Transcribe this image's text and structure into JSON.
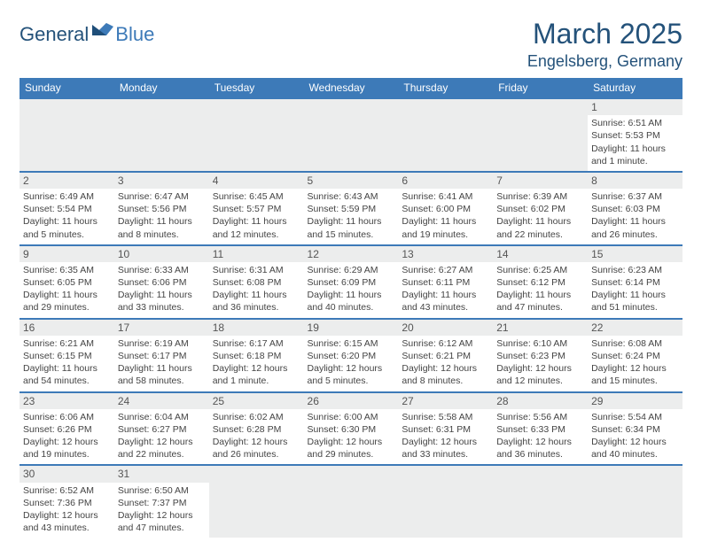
{
  "logo": {
    "word1": "General",
    "word2": "Blue"
  },
  "header": {
    "title": "March 2025",
    "subtitle": "Engelsberg, Germany"
  },
  "colors": {
    "header_bg": "#3d7ab8",
    "header_text": "#ffffff",
    "daybar_bg": "#eceded",
    "border": "#3d7ab8",
    "title": "#24527a"
  },
  "daynames": [
    "Sunday",
    "Monday",
    "Tuesday",
    "Wednesday",
    "Thursday",
    "Friday",
    "Saturday"
  ],
  "weeks": [
    [
      null,
      null,
      null,
      null,
      null,
      null,
      {
        "n": "1",
        "sr": "Sunrise: 6:51 AM",
        "ss": "Sunset: 5:53 PM",
        "d1": "Daylight: 11 hours",
        "d2": "and 1 minute."
      }
    ],
    [
      {
        "n": "2",
        "sr": "Sunrise: 6:49 AM",
        "ss": "Sunset: 5:54 PM",
        "d1": "Daylight: 11 hours",
        "d2": "and 5 minutes."
      },
      {
        "n": "3",
        "sr": "Sunrise: 6:47 AM",
        "ss": "Sunset: 5:56 PM",
        "d1": "Daylight: 11 hours",
        "d2": "and 8 minutes."
      },
      {
        "n": "4",
        "sr": "Sunrise: 6:45 AM",
        "ss": "Sunset: 5:57 PM",
        "d1": "Daylight: 11 hours",
        "d2": "and 12 minutes."
      },
      {
        "n": "5",
        "sr": "Sunrise: 6:43 AM",
        "ss": "Sunset: 5:59 PM",
        "d1": "Daylight: 11 hours",
        "d2": "and 15 minutes."
      },
      {
        "n": "6",
        "sr": "Sunrise: 6:41 AM",
        "ss": "Sunset: 6:00 PM",
        "d1": "Daylight: 11 hours",
        "d2": "and 19 minutes."
      },
      {
        "n": "7",
        "sr": "Sunrise: 6:39 AM",
        "ss": "Sunset: 6:02 PM",
        "d1": "Daylight: 11 hours",
        "d2": "and 22 minutes."
      },
      {
        "n": "8",
        "sr": "Sunrise: 6:37 AM",
        "ss": "Sunset: 6:03 PM",
        "d1": "Daylight: 11 hours",
        "d2": "and 26 minutes."
      }
    ],
    [
      {
        "n": "9",
        "sr": "Sunrise: 6:35 AM",
        "ss": "Sunset: 6:05 PM",
        "d1": "Daylight: 11 hours",
        "d2": "and 29 minutes."
      },
      {
        "n": "10",
        "sr": "Sunrise: 6:33 AM",
        "ss": "Sunset: 6:06 PM",
        "d1": "Daylight: 11 hours",
        "d2": "and 33 minutes."
      },
      {
        "n": "11",
        "sr": "Sunrise: 6:31 AM",
        "ss": "Sunset: 6:08 PM",
        "d1": "Daylight: 11 hours",
        "d2": "and 36 minutes."
      },
      {
        "n": "12",
        "sr": "Sunrise: 6:29 AM",
        "ss": "Sunset: 6:09 PM",
        "d1": "Daylight: 11 hours",
        "d2": "and 40 minutes."
      },
      {
        "n": "13",
        "sr": "Sunrise: 6:27 AM",
        "ss": "Sunset: 6:11 PM",
        "d1": "Daylight: 11 hours",
        "d2": "and 43 minutes."
      },
      {
        "n": "14",
        "sr": "Sunrise: 6:25 AM",
        "ss": "Sunset: 6:12 PM",
        "d1": "Daylight: 11 hours",
        "d2": "and 47 minutes."
      },
      {
        "n": "15",
        "sr": "Sunrise: 6:23 AM",
        "ss": "Sunset: 6:14 PM",
        "d1": "Daylight: 11 hours",
        "d2": "and 51 minutes."
      }
    ],
    [
      {
        "n": "16",
        "sr": "Sunrise: 6:21 AM",
        "ss": "Sunset: 6:15 PM",
        "d1": "Daylight: 11 hours",
        "d2": "and 54 minutes."
      },
      {
        "n": "17",
        "sr": "Sunrise: 6:19 AM",
        "ss": "Sunset: 6:17 PM",
        "d1": "Daylight: 11 hours",
        "d2": "and 58 minutes."
      },
      {
        "n": "18",
        "sr": "Sunrise: 6:17 AM",
        "ss": "Sunset: 6:18 PM",
        "d1": "Daylight: 12 hours",
        "d2": "and 1 minute."
      },
      {
        "n": "19",
        "sr": "Sunrise: 6:15 AM",
        "ss": "Sunset: 6:20 PM",
        "d1": "Daylight: 12 hours",
        "d2": "and 5 minutes."
      },
      {
        "n": "20",
        "sr": "Sunrise: 6:12 AM",
        "ss": "Sunset: 6:21 PM",
        "d1": "Daylight: 12 hours",
        "d2": "and 8 minutes."
      },
      {
        "n": "21",
        "sr": "Sunrise: 6:10 AM",
        "ss": "Sunset: 6:23 PM",
        "d1": "Daylight: 12 hours",
        "d2": "and 12 minutes."
      },
      {
        "n": "22",
        "sr": "Sunrise: 6:08 AM",
        "ss": "Sunset: 6:24 PM",
        "d1": "Daylight: 12 hours",
        "d2": "and 15 minutes."
      }
    ],
    [
      {
        "n": "23",
        "sr": "Sunrise: 6:06 AM",
        "ss": "Sunset: 6:26 PM",
        "d1": "Daylight: 12 hours",
        "d2": "and 19 minutes."
      },
      {
        "n": "24",
        "sr": "Sunrise: 6:04 AM",
        "ss": "Sunset: 6:27 PM",
        "d1": "Daylight: 12 hours",
        "d2": "and 22 minutes."
      },
      {
        "n": "25",
        "sr": "Sunrise: 6:02 AM",
        "ss": "Sunset: 6:28 PM",
        "d1": "Daylight: 12 hours",
        "d2": "and 26 minutes."
      },
      {
        "n": "26",
        "sr": "Sunrise: 6:00 AM",
        "ss": "Sunset: 6:30 PM",
        "d1": "Daylight: 12 hours",
        "d2": "and 29 minutes."
      },
      {
        "n": "27",
        "sr": "Sunrise: 5:58 AM",
        "ss": "Sunset: 6:31 PM",
        "d1": "Daylight: 12 hours",
        "d2": "and 33 minutes."
      },
      {
        "n": "28",
        "sr": "Sunrise: 5:56 AM",
        "ss": "Sunset: 6:33 PM",
        "d1": "Daylight: 12 hours",
        "d2": "and 36 minutes."
      },
      {
        "n": "29",
        "sr": "Sunrise: 5:54 AM",
        "ss": "Sunset: 6:34 PM",
        "d1": "Daylight: 12 hours",
        "d2": "and 40 minutes."
      }
    ],
    [
      {
        "n": "30",
        "sr": "Sunrise: 6:52 AM",
        "ss": "Sunset: 7:36 PM",
        "d1": "Daylight: 12 hours",
        "d2": "and 43 minutes."
      },
      {
        "n": "31",
        "sr": "Sunrise: 6:50 AM",
        "ss": "Sunset: 7:37 PM",
        "d1": "Daylight: 12 hours",
        "d2": "and 47 minutes."
      },
      null,
      null,
      null,
      null,
      null
    ]
  ]
}
